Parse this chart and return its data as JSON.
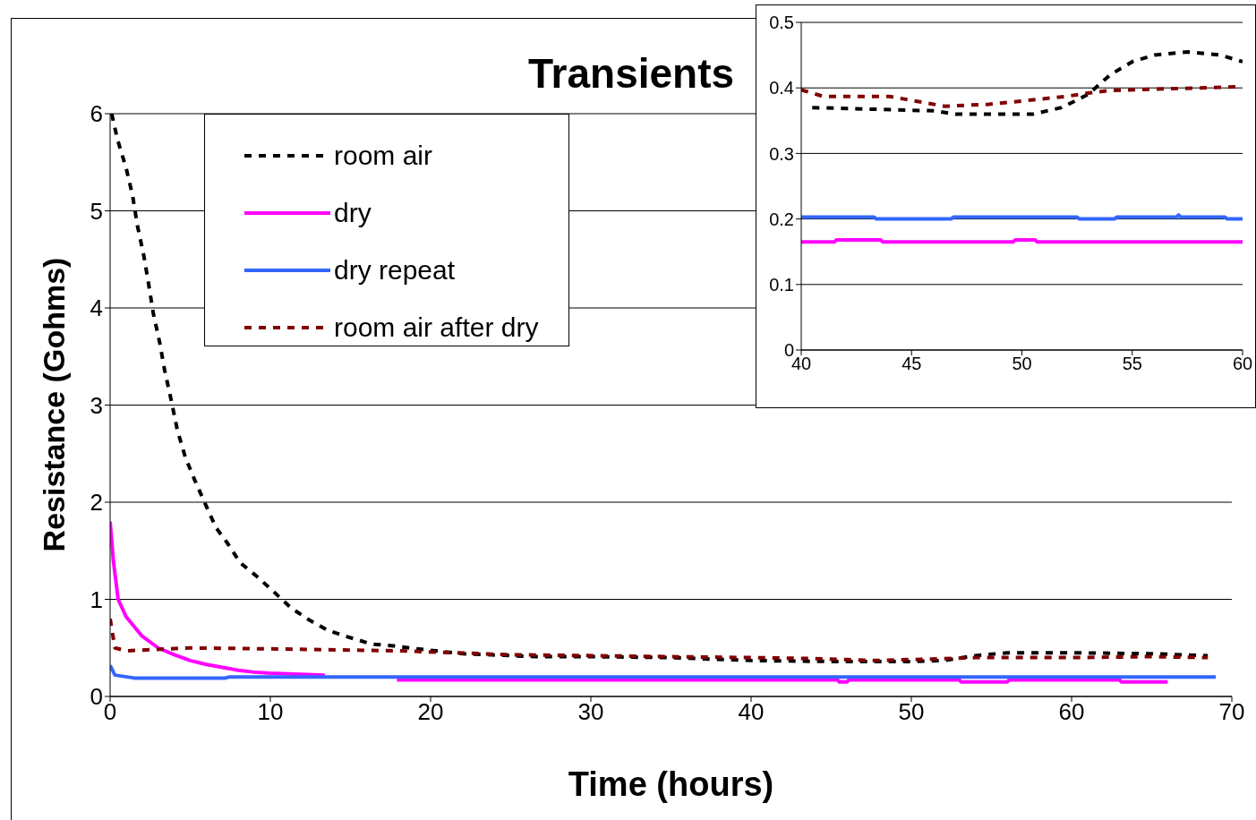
{
  "chart_data": [
    {
      "type": "line",
      "title": "Transients",
      "xlabel": "Time (hours)",
      "ylabel": "Resistance (Gohms)",
      "xlim": [
        0,
        70
      ],
      "ylim": [
        0,
        6
      ],
      "xticks": [
        0,
        10,
        20,
        30,
        40,
        50,
        60,
        70
      ],
      "yticks": [
        0,
        1,
        2,
        3,
        4,
        5,
        6
      ],
      "grid": "y",
      "legend": "top left",
      "marker": "none",
      "series": [
        {
          "name": "room air",
          "color": "#000000",
          "line_style": "dashed",
          "x": [
            0.1,
            0.45,
            1,
            1.4,
            1.7,
            2.1,
            2.4,
            2.7,
            3.1,
            3.4,
            3.8,
            4.2,
            4.7,
            5.3,
            6,
            6.6,
            7.4,
            8.1,
            9.2,
            10.2,
            11.3,
            12.4,
            13.6,
            14.9,
            16.3,
            17.7,
            19.7,
            22,
            26.6,
            30,
            35,
            40,
            45,
            50,
            52,
            54,
            56,
            58,
            60,
            65,
            68.5
          ],
          "values": [
            6,
            5.74,
            5.44,
            5.16,
            4.85,
            4.54,
            4.25,
            3.94,
            3.64,
            3.36,
            3.06,
            2.74,
            2.46,
            2.22,
            1.96,
            1.74,
            1.56,
            1.38,
            1.23,
            1.08,
            0.91,
            0.79,
            0.68,
            0.61,
            0.54,
            0.52,
            0.48,
            0.44,
            0.41,
            0.41,
            0.4,
            0.37,
            0.36,
            0.36,
            0.37,
            0.42,
            0.45,
            0.45,
            0.45,
            0.44,
            0.42
          ]
        },
        {
          "name": "dry",
          "color": "#ff00ff",
          "line_style": "solid",
          "x": [
            0,
            0.2,
            0.5,
            1,
            2,
            3,
            4,
            5,
            6,
            7,
            8,
            9,
            10,
            13.4,
            15,
            17.9,
            45.4,
            45.5,
            46,
            46.1,
            53,
            53.1,
            56,
            56.1,
            63,
            63.1,
            66
          ],
          "values": [
            1.8,
            1.4,
            1,
            0.82,
            0.62,
            0.5,
            0.43,
            0.37,
            0.33,
            0.3,
            0.27,
            0.25,
            0.24,
            0.22,
            null,
            0.17,
            0.17,
            0.15,
            0.15,
            0.17,
            0.17,
            0.15,
            0.15,
            0.17,
            0.17,
            0.15,
            0.15
          ]
        },
        {
          "name": "dry repeat",
          "color": "#3366ff",
          "line_style": "solid",
          "x": [
            0,
            0.3,
            1.5,
            7.2,
            7.4,
            69
          ],
          "values": [
            0.32,
            0.22,
            0.19,
            0.19,
            0.2,
            0.2
          ]
        },
        {
          "name": "room air after dry",
          "color": "#800000",
          "line_style": "dashed",
          "x": [
            0,
            0.3,
            1,
            5,
            10,
            18,
            25,
            40,
            44,
            46,
            48,
            50,
            52,
            54,
            57,
            60,
            65,
            68.5
          ],
          "values": [
            0.8,
            0.5,
            0.47,
            0.5,
            0.49,
            0.47,
            0.43,
            0.4,
            0.39,
            0.38,
            0.37,
            0.38,
            0.39,
            0.4,
            0.4,
            0.4,
            0.41,
            0.4
          ]
        }
      ]
    },
    {
      "type": "line",
      "xlim": [
        40,
        60
      ],
      "ylim": [
        0,
        0.5
      ],
      "xticks": [
        40,
        45,
        50,
        55,
        60
      ],
      "yticks": [
        0,
        0.1,
        0.2,
        0.3,
        0.4,
        0.5
      ],
      "grid": "y",
      "marker": "none",
      "series": [
        {
          "color": "#000000",
          "line_style": "dashed",
          "x": [
            40.5,
            46,
            47,
            50.5,
            51.8,
            53,
            54,
            55,
            56,
            57.5,
            59,
            60
          ],
          "values": [
            0.37,
            0.365,
            0.36,
            0.36,
            0.37,
            0.39,
            0.42,
            0.44,
            0.45,
            0.455,
            0.45,
            0.44
          ]
        },
        {
          "color": "#ff00ff",
          "line_style": "solid",
          "x": [
            40,
            41.5,
            41.6,
            43.6,
            43.7,
            49.6,
            49.7,
            50.6,
            50.7,
            60
          ],
          "values": [
            0.165,
            0.165,
            0.168,
            0.168,
            0.165,
            0.165,
            0.168,
            0.168,
            0.165,
            0.165
          ]
        },
        {
          "color": "#3366ff",
          "line_style": "solid",
          "x": [
            40,
            43.3,
            43.4,
            46.8,
            46.9,
            52.5,
            52.6,
            54.2,
            54.3,
            57,
            57.1,
            57.2,
            59.2,
            59.3,
            60
          ],
          "values": [
            0.203,
            0.203,
            0.2,
            0.2,
            0.203,
            0.203,
            0.2,
            0.2,
            0.203,
            0.203,
            0.206,
            0.203,
            0.203,
            0.2,
            0.2
          ]
        },
        {
          "color": "#800000",
          "line_style": "dashed",
          "x": [
            40,
            41,
            44,
            45.5,
            46.5,
            48.5,
            50,
            52,
            53,
            54,
            56,
            58,
            60
          ],
          "values": [
            0.397,
            0.387,
            0.387,
            0.378,
            0.372,
            0.375,
            0.38,
            0.387,
            0.392,
            0.396,
            0.398,
            0.4,
            0.402
          ]
        }
      ]
    }
  ]
}
